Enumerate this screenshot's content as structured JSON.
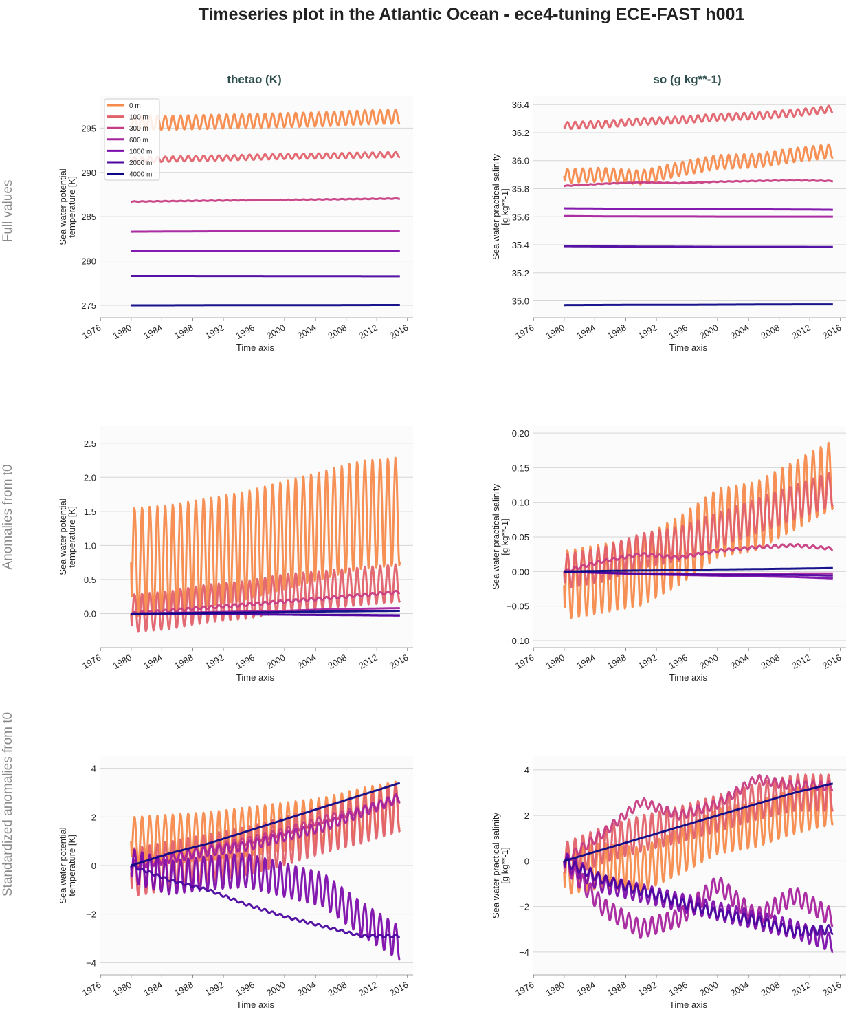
{
  "title": "Timeseries plot in the Atlantic Ocean - ece4-tuning ECE-FAST h001",
  "columns": [
    "thetao (K)",
    "so (g kg**-1)"
  ],
  "rows": [
    "Full values",
    "Anomalies from t0",
    "Standardized anomalies from t0"
  ],
  "legend": {
    "placement": "top-left",
    "entries": [
      {
        "label": "0 m",
        "color": "#f58a4b"
      },
      {
        "label": "100 m",
        "color": "#e2626b"
      },
      {
        "label": "300 m",
        "color": "#c73d83"
      },
      {
        "label": "600 m",
        "color": "#a6239d"
      },
      {
        "label": "1000 m",
        "color": "#7d0eab"
      },
      {
        "label": "2000 m",
        "color": "#4b06a0"
      },
      {
        "label": "4000 m",
        "color": "#0d0887"
      }
    ]
  },
  "chart_data": [
    {
      "type": "line",
      "row": 0,
      "col": 0,
      "grid": true,
      "xlabel": "Time axis",
      "ylabel": [
        "Sea water potential",
        "temperature [K]"
      ],
      "xlim": [
        1975.9,
        2016.7
      ],
      "ylim": [
        273.6,
        298.6
      ],
      "x_ticks": [
        "1976",
        "1980",
        "1984",
        "1988",
        "1992",
        "1996",
        "2000",
        "2004",
        "2008",
        "2012",
        "2016"
      ],
      "y_ticks": [
        {
          "value": 275,
          "label": "275"
        },
        {
          "value": 280,
          "label": "280"
        },
        {
          "value": 285,
          "label": "285"
        },
        {
          "value": 290,
          "label": "290"
        },
        {
          "value": 295,
          "label": "295"
        }
      ],
      "x": [
        1980,
        1985,
        1990,
        1995,
        2000,
        2005,
        2010,
        2015
      ],
      "series": [
        {
          "name": "0 m",
          "color": "#f58a4b",
          "seasonal_amplitude": 0.8,
          "y": [
            295.6,
            295.6,
            295.7,
            295.8,
            295.9,
            296.0,
            296.2,
            296.3
          ]
        },
        {
          "name": "100 m",
          "color": "#e2626b",
          "seasonal_amplitude": 0.3,
          "y": [
            291.4,
            291.5,
            291.6,
            291.7,
            291.8,
            291.85,
            291.95,
            292.0
          ]
        },
        {
          "name": "300 m",
          "color": "#c73d83",
          "seasonal_amplitude": 0.03,
          "y": [
            286.7,
            286.75,
            286.8,
            286.85,
            286.9,
            286.95,
            287.0,
            287.05
          ]
        },
        {
          "name": "600 m",
          "color": "#a6239d",
          "seasonal_amplitude": 0,
          "y": [
            283.3,
            283.32,
            283.34,
            283.35,
            283.37,
            283.38,
            283.4,
            283.42
          ]
        },
        {
          "name": "1000 m",
          "color": "#7d0eab",
          "seasonal_amplitude": 0,
          "y": [
            281.15,
            281.15,
            281.14,
            281.14,
            281.13,
            281.13,
            281.12,
            281.12
          ]
        },
        {
          "name": "2000 m",
          "color": "#4b06a0",
          "seasonal_amplitude": 0,
          "y": [
            278.3,
            278.3,
            278.29,
            278.29,
            278.28,
            278.28,
            278.27,
            278.27
          ]
        },
        {
          "name": "4000 m",
          "color": "#0d0887",
          "seasonal_amplitude": 0,
          "y": [
            275.0,
            275.0,
            275.01,
            275.01,
            275.02,
            275.02,
            275.03,
            275.04
          ]
        }
      ]
    },
    {
      "type": "line",
      "row": 0,
      "col": 1,
      "grid": true,
      "xlabel": "Time axis",
      "ylabel": [
        "Sea water practical salinity",
        "[g kg**-1]"
      ],
      "xlim": [
        1975.9,
        2016.7
      ],
      "ylim": [
        34.88,
        36.46
      ],
      "x_ticks": [
        "1976",
        "1980",
        "1984",
        "1988",
        "1992",
        "1996",
        "2000",
        "2004",
        "2008",
        "2012",
        "2016"
      ],
      "y_ticks": [
        {
          "value": 35.0,
          "label": "35.0"
        },
        {
          "value": 35.2,
          "label": "35.2"
        },
        {
          "value": 35.4,
          "label": "35.4"
        },
        {
          "value": 35.6,
          "label": "35.6"
        },
        {
          "value": 35.8,
          "label": "35.8"
        },
        {
          "value": 36.0,
          "label": "36.0"
        },
        {
          "value": 36.2,
          "label": "36.2"
        },
        {
          "value": 36.4,
          "label": "36.4"
        }
      ],
      "x": [
        1980,
        1985,
        1990,
        1995,
        2000,
        2005,
        2010,
        2015
      ],
      "series": [
        {
          "name": "0 m",
          "color": "#f58a4b",
          "seasonal_amplitude": 0.05,
          "y": [
            35.89,
            35.9,
            35.88,
            35.94,
            35.99,
            36.0,
            36.04,
            36.07
          ]
        },
        {
          "name": "100 m",
          "color": "#e2626b",
          "seasonal_amplitude": 0.025,
          "y": [
            36.25,
            36.26,
            36.28,
            36.29,
            36.31,
            36.32,
            36.34,
            36.37
          ]
        },
        {
          "name": "300 m",
          "color": "#c73d83",
          "seasonal_amplitude": 0.002,
          "y": [
            35.82,
            35.835,
            35.845,
            35.84,
            35.85,
            35.855,
            35.86,
            35.855
          ]
        },
        {
          "name": "600 m",
          "color": "#a6239d",
          "seasonal_amplitude": 0,
          "y": [
            35.605,
            35.603,
            35.602,
            35.602,
            35.601,
            35.601,
            35.601,
            35.601
          ]
        },
        {
          "name": "1000 m",
          "color": "#7d0eab",
          "seasonal_amplitude": 0,
          "y": [
            35.66,
            35.658,
            35.656,
            35.655,
            35.654,
            35.653,
            35.652,
            35.65
          ]
        },
        {
          "name": "2000 m",
          "color": "#4b06a0",
          "seasonal_amplitude": 0,
          "y": [
            35.39,
            35.388,
            35.387,
            35.386,
            35.385,
            35.385,
            35.385,
            35.384
          ]
        },
        {
          "name": "4000 m",
          "color": "#0d0887",
          "seasonal_amplitude": 0,
          "y": [
            34.97,
            34.971,
            34.972,
            34.972,
            34.973,
            34.974,
            34.975,
            34.975
          ]
        }
      ]
    },
    {
      "type": "line",
      "row": 1,
      "col": 0,
      "grid": true,
      "xlabel": "Time axis",
      "ylabel": [
        "Sea water potential",
        "temperature [K]"
      ],
      "xlim": [
        1975.9,
        2016.7
      ],
      "ylim": [
        -0.5,
        2.75
      ],
      "x_ticks": [
        "1976",
        "1980",
        "1984",
        "1988",
        "1992",
        "1996",
        "2000",
        "2004",
        "2008",
        "2012",
        "2016"
      ],
      "y_ticks": [
        {
          "value": 0,
          "label": "0.0"
        },
        {
          "value": 0.5,
          "label": "0.5"
        },
        {
          "value": 1.0,
          "label": "1.0"
        },
        {
          "value": 1.5,
          "label": "1.5"
        },
        {
          "value": 2.0,
          "label": "2.0"
        },
        {
          "value": 2.5,
          "label": "2.5"
        }
      ],
      "x": [
        1980,
        1985,
        1990,
        1995,
        2000,
        2005,
        2010,
        2015
      ],
      "series": [
        {
          "name": "0 m",
          "color": "#f58a4b",
          "seasonal_amplitude": 0.8,
          "y": [
            0.75,
            0.8,
            0.9,
            1.0,
            1.15,
            1.3,
            1.45,
            1.5
          ]
        },
        {
          "name": "100 m",
          "color": "#e2626b",
          "seasonal_amplitude": 0.28,
          "y": [
            0.0,
            0.05,
            0.15,
            0.2,
            0.3,
            0.35,
            0.4,
            0.45
          ]
        },
        {
          "name": "300 m",
          "color": "#c73d83",
          "seasonal_amplitude": 0.02,
          "y": [
            0.0,
            0.04,
            0.09,
            0.13,
            0.18,
            0.22,
            0.27,
            0.32
          ]
        },
        {
          "name": "600 m",
          "color": "#a6239d",
          "seasonal_amplitude": 0,
          "y": [
            0.0,
            0.01,
            0.02,
            0.03,
            0.04,
            0.06,
            0.07,
            0.08
          ]
        },
        {
          "name": "1000 m",
          "color": "#7d0eab",
          "seasonal_amplitude": 0,
          "y": [
            0.0,
            0.0,
            -0.005,
            -0.01,
            -0.015,
            -0.02,
            -0.025,
            -0.03
          ]
        },
        {
          "name": "2000 m",
          "color": "#4b06a0",
          "seasonal_amplitude": 0,
          "y": [
            0.0,
            0.0,
            -0.005,
            -0.01,
            -0.015,
            -0.02,
            -0.02,
            -0.025
          ]
        },
        {
          "name": "4000 m",
          "color": "#0d0887",
          "seasonal_amplitude": 0,
          "y": [
            0.0,
            0.005,
            0.01,
            0.015,
            0.02,
            0.03,
            0.035,
            0.04
          ]
        }
      ]
    },
    {
      "type": "line",
      "row": 1,
      "col": 1,
      "grid": true,
      "xlabel": "Time axis",
      "ylabel": [
        "Sea water practical salinity",
        "[g kg**-1]"
      ],
      "xlim": [
        1975.9,
        2016.7
      ],
      "ylim": [
        -0.11,
        0.21
      ],
      "x_ticks": [
        "1976",
        "1980",
        "1984",
        "1988",
        "1992",
        "1996",
        "2000",
        "2004",
        "2008",
        "2012",
        "2016"
      ],
      "y_ticks": [
        {
          "value": -0.1,
          "label": "−0.10"
        },
        {
          "value": -0.05,
          "label": "−0.05"
        },
        {
          "value": 0,
          "label": "0.00"
        },
        {
          "value": 0.05,
          "label": "0.05"
        },
        {
          "value": 0.1,
          "label": "0.10"
        },
        {
          "value": 0.15,
          "label": "0.15"
        },
        {
          "value": 0.2,
          "label": "0.20"
        }
      ],
      "x": [
        1980,
        1985,
        1990,
        1995,
        2000,
        2005,
        2010,
        2015
      ],
      "series": [
        {
          "name": "0 m",
          "color": "#f58a4b",
          "seasonal_amplitude": 0.05,
          "y": [
            -0.02,
            -0.01,
            0.0,
            0.03,
            0.07,
            0.08,
            0.11,
            0.14
          ]
        },
        {
          "name": "100 m",
          "color": "#e2626b",
          "seasonal_amplitude": 0.025,
          "y": [
            0.0,
            0.01,
            0.03,
            0.04,
            0.06,
            0.08,
            0.1,
            0.12
          ]
        },
        {
          "name": "300 m",
          "color": "#c73d83",
          "seasonal_amplitude": 0.002,
          "y": [
            0.0,
            0.015,
            0.025,
            0.02,
            0.03,
            0.035,
            0.038,
            0.033
          ]
        },
        {
          "name": "600 m",
          "color": "#a6239d",
          "seasonal_amplitude": 0,
          "y": [
            0.0,
            -0.002,
            -0.003,
            -0.003,
            -0.004,
            -0.004,
            -0.003,
            -0.003
          ]
        },
        {
          "name": "1000 m",
          "color": "#7d0eab",
          "seasonal_amplitude": 0,
          "y": [
            0.0,
            -0.002,
            -0.004,
            -0.005,
            -0.006,
            -0.007,
            -0.008,
            -0.01
          ]
        },
        {
          "name": "2000 m",
          "color": "#4b06a0",
          "seasonal_amplitude": 0,
          "y": [
            0.0,
            -0.002,
            -0.003,
            -0.004,
            -0.005,
            -0.005,
            -0.005,
            -0.006
          ]
        },
        {
          "name": "4000 m",
          "color": "#0d0887",
          "seasonal_amplitude": 0,
          "y": [
            0.0,
            0.0008,
            0.0015,
            0.002,
            0.003,
            0.0035,
            0.0042,
            0.005
          ]
        }
      ]
    },
    {
      "type": "line",
      "row": 2,
      "col": 0,
      "grid": true,
      "xlabel": "Time axis",
      "ylabel": [
        "Sea water potential",
        "temperature [K]"
      ],
      "xlim": [
        1975.9,
        2016.7
      ],
      "ylim": [
        -4.5,
        4.5
      ],
      "x_ticks": [
        "1976",
        "1980",
        "1984",
        "1988",
        "1992",
        "1996",
        "2000",
        "2004",
        "2008",
        "2012",
        "2016"
      ],
      "y_ticks": [
        {
          "value": -4,
          "label": "−4"
        },
        {
          "value": -2,
          "label": "−2"
        },
        {
          "value": 0,
          "label": "0"
        },
        {
          "value": 2,
          "label": "2"
        },
        {
          "value": 4,
          "label": "4"
        }
      ],
      "x": [
        1980,
        1985,
        1990,
        1995,
        2000,
        2005,
        2010,
        2015
      ],
      "series": [
        {
          "name": "0 m",
          "color": "#f58a4b",
          "seasonal_amplitude": 1.0,
          "y": [
            1.0,
            1.1,
            1.2,
            1.4,
            1.6,
            1.8,
            2.2,
            2.5
          ]
        },
        {
          "name": "100 m",
          "color": "#e2626b",
          "seasonal_amplitude": 1.0,
          "y": [
            -0.3,
            0.0,
            0.3,
            0.6,
            1.0,
            1.5,
            1.9,
            2.4
          ]
        },
        {
          "name": "300 m",
          "color": "#c73d83",
          "seasonal_amplitude": 0.15,
          "y": [
            0.0,
            0.3,
            0.7,
            1.0,
            1.4,
            1.9,
            2.3,
            2.8
          ]
        },
        {
          "name": "600 m",
          "color": "#a6239d",
          "seasonal_amplitude": 0.2,
          "y": [
            0.0,
            0.3,
            0.6,
            0.8,
            1.2,
            1.6,
            2.2,
            2.8
          ]
        },
        {
          "name": "1000 m",
          "color": "#7d0eab",
          "seasonal_amplitude": 0.7,
          "y": [
            0.0,
            -0.5,
            -0.3,
            -0.2,
            -0.6,
            -1.0,
            -2.2,
            -3.2
          ]
        },
        {
          "name": "2000 m",
          "color": "#4b06a0",
          "seasonal_amplitude": 0.05,
          "y": [
            0.0,
            -0.6,
            -1.0,
            -1.6,
            -2.1,
            -2.5,
            -2.9,
            -2.9
          ]
        },
        {
          "name": "4000 m",
          "color": "#0d0887",
          "seasonal_amplitude": 0,
          "y": [
            0.0,
            0.5,
            0.9,
            1.4,
            1.9,
            2.4,
            2.9,
            3.4
          ]
        }
      ]
    },
    {
      "type": "line",
      "row": 2,
      "col": 1,
      "grid": true,
      "xlabel": "Time axis",
      "ylabel": [
        "Sea water practical salinity",
        "[g kg**-1]"
      ],
      "xlim": [
        1975.9,
        2016.7
      ],
      "ylim": [
        -5.0,
        4.6
      ],
      "x_ticks": [
        "1976",
        "1980",
        "1984",
        "1988",
        "1992",
        "1996",
        "2000",
        "2004",
        "2008",
        "2012",
        "2016"
      ],
      "y_ticks": [
        {
          "value": -4,
          "label": "−4"
        },
        {
          "value": -2,
          "label": "−2"
        },
        {
          "value": 0,
          "label": "0"
        },
        {
          "value": 2,
          "label": "2"
        },
        {
          "value": 4,
          "label": "4"
        }
      ],
      "x": [
        1980,
        1985,
        1990,
        1995,
        2000,
        2005,
        2010,
        2015
      ],
      "series": [
        {
          "name": "0 m",
          "color": "#f58a4b",
          "seasonal_amplitude": 1.0,
          "y": [
            -0.5,
            -0.2,
            -0.4,
            0.4,
            1.3,
            1.6,
            2.2,
            2.6
          ]
        },
        {
          "name": "100 m",
          "color": "#e2626b",
          "seasonal_amplitude": 0.8,
          "y": [
            0.0,
            0.7,
            1.2,
            1.6,
            2.1,
            2.6,
            3.0,
            3.0
          ]
        },
        {
          "name": "300 m",
          "color": "#c73d83",
          "seasonal_amplitude": 0.2,
          "y": [
            0.0,
            1.2,
            2.6,
            2.0,
            2.5,
            3.6,
            3.3,
            3.3
          ]
        },
        {
          "name": "600 m",
          "color": "#a6239d",
          "seasonal_amplitude": 0.4,
          "y": [
            0.0,
            -2.0,
            -3.0,
            -2.5,
            -1.0,
            -2.5,
            -1.5,
            -2.5
          ]
        },
        {
          "name": "1000 m",
          "color": "#7d0eab",
          "seasonal_amplitude": 0.4,
          "y": [
            0.0,
            -1.0,
            -1.4,
            -1.8,
            -2.2,
            -2.6,
            -3.0,
            -3.6
          ]
        },
        {
          "name": "2000 m",
          "color": "#4b06a0",
          "seasonal_amplitude": 0.2,
          "y": [
            0.0,
            -0.8,
            -1.3,
            -1.8,
            -2.3,
            -2.6,
            -3.1,
            -3.0
          ]
        },
        {
          "name": "4000 m",
          "color": "#0d0887",
          "seasonal_amplitude": 0,
          "y": [
            0.0,
            0.5,
            1.0,
            1.5,
            2.0,
            2.5,
            3.0,
            3.4
          ]
        }
      ]
    }
  ]
}
